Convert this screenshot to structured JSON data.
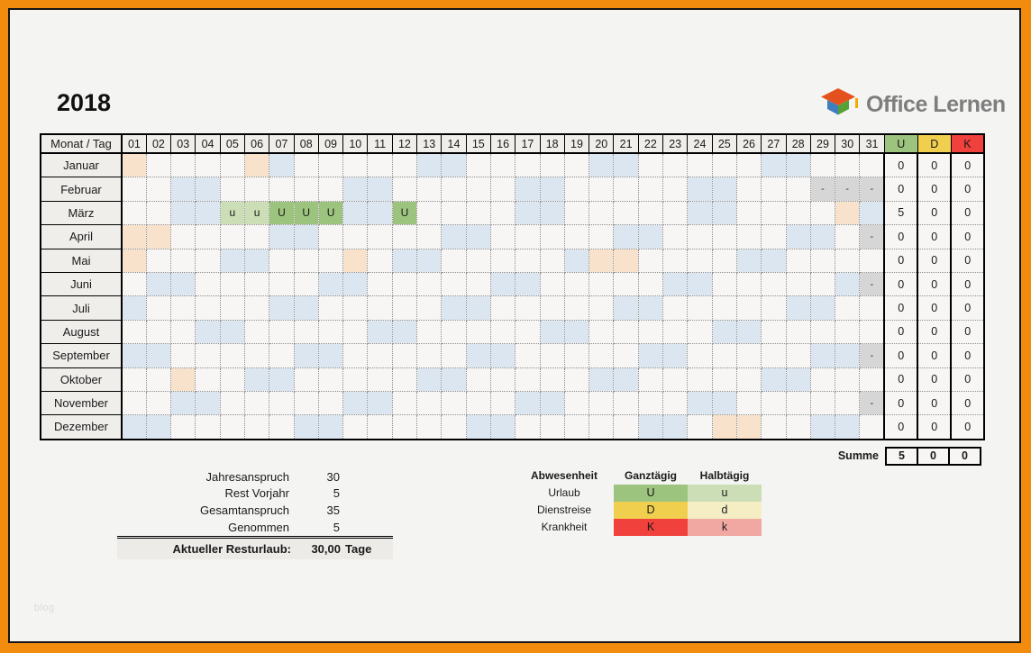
{
  "page": {
    "title": "2018",
    "watermark": "blog",
    "logo": {
      "text": "Office Lernen"
    }
  },
  "colors": {
    "frame_orange": "#F28C0E",
    "background": "#F4F4F2",
    "weekend": "#DCE6F1",
    "holiday": "#F9E2CB",
    "invalid": "#D6D6D6",
    "U": "#9DC47E",
    "u": "#CBDEB6",
    "D": "#F1CF4E",
    "d": "#F5EEC5",
    "K": "#F0413C",
    "k": "#F1A8A3",
    "logo_text": "#7E7E7E"
  },
  "calendar": {
    "corner_header": "Monat / Tag",
    "day_headers": [
      "01",
      "02",
      "03",
      "04",
      "05",
      "06",
      "07",
      "08",
      "09",
      "10",
      "11",
      "12",
      "13",
      "14",
      "15",
      "16",
      "17",
      "18",
      "19",
      "20",
      "21",
      "22",
      "23",
      "24",
      "25",
      "26",
      "27",
      "28",
      "29",
      "30",
      "31"
    ],
    "sum_headers": [
      {
        "label": "U",
        "key": "U"
      },
      {
        "label": "D",
        "key": "D"
      },
      {
        "label": "K",
        "key": "K"
      }
    ],
    "cell_marks": {
      "U": "U",
      "u": "u",
      "na": "-",
      "we": "",
      "ho": ""
    },
    "months": [
      {
        "name": "Januar",
        "cells": {
          "1": "ho",
          "6": "ho",
          "7": "we",
          "13": "we",
          "14": "we",
          "20": "we",
          "21": "we",
          "27": "we",
          "28": "we"
        },
        "sums": [
          "0",
          "0",
          "0"
        ]
      },
      {
        "name": "Februar",
        "cells": {
          "3": "we",
          "4": "we",
          "10": "we",
          "11": "we",
          "17": "we",
          "18": "we",
          "24": "we",
          "25": "we",
          "29": "na",
          "30": "na",
          "31": "na"
        },
        "sums": [
          "0",
          "0",
          "0"
        ]
      },
      {
        "name": "März",
        "cells": {
          "3": "we",
          "4": "we",
          "5": "u",
          "6": "u",
          "7": "U",
          "8": "U",
          "9": "U",
          "10": "we",
          "11": "we",
          "12": "U",
          "17": "we",
          "18": "we",
          "24": "we",
          "25": "we",
          "30": "ho",
          "31": "we"
        },
        "sums": [
          "5",
          "0",
          "0"
        ]
      },
      {
        "name": "April",
        "cells": {
          "1": "ho",
          "2": "ho",
          "7": "we",
          "8": "we",
          "14": "we",
          "15": "we",
          "21": "we",
          "22": "we",
          "28": "we",
          "29": "we",
          "31": "na"
        },
        "sums": [
          "0",
          "0",
          "0"
        ]
      },
      {
        "name": "Mai",
        "cells": {
          "1": "ho",
          "5": "we",
          "6": "we",
          "10": "ho",
          "12": "we",
          "13": "we",
          "19": "we",
          "20": "ho",
          "21": "ho",
          "26": "we",
          "27": "we"
        },
        "sums": [
          "0",
          "0",
          "0"
        ]
      },
      {
        "name": "Juni",
        "cells": {
          "2": "we",
          "3": "we",
          "9": "we",
          "10": "we",
          "16": "we",
          "17": "we",
          "23": "we",
          "24": "we",
          "30": "we",
          "31": "na"
        },
        "sums": [
          "0",
          "0",
          "0"
        ]
      },
      {
        "name": "Juli",
        "cells": {
          "1": "we",
          "7": "we",
          "8": "we",
          "14": "we",
          "15": "we",
          "21": "we",
          "22": "we",
          "28": "we",
          "29": "we"
        },
        "sums": [
          "0",
          "0",
          "0"
        ]
      },
      {
        "name": "August",
        "cells": {
          "4": "we",
          "5": "we",
          "11": "we",
          "12": "we",
          "18": "we",
          "19": "we",
          "25": "we",
          "26": "we"
        },
        "sums": [
          "0",
          "0",
          "0"
        ]
      },
      {
        "name": "September",
        "cells": {
          "1": "we",
          "2": "we",
          "8": "we",
          "9": "we",
          "15": "we",
          "16": "we",
          "22": "we",
          "23": "we",
          "29": "we",
          "30": "we",
          "31": "na"
        },
        "sums": [
          "0",
          "0",
          "0"
        ]
      },
      {
        "name": "Oktober",
        "cells": {
          "3": "ho",
          "6": "we",
          "7": "we",
          "13": "we",
          "14": "we",
          "20": "we",
          "21": "we",
          "27": "we",
          "28": "we"
        },
        "sums": [
          "0",
          "0",
          "0"
        ]
      },
      {
        "name": "November",
        "cells": {
          "3": "we",
          "4": "we",
          "10": "we",
          "11": "we",
          "17": "we",
          "18": "we",
          "24": "we",
          "25": "we",
          "31": "na"
        },
        "sums": [
          "0",
          "0",
          "0"
        ]
      },
      {
        "name": "Dezember",
        "cells": {
          "1": "we",
          "2": "we",
          "8": "we",
          "9": "we",
          "15": "we",
          "16": "we",
          "22": "we",
          "23": "we",
          "25": "ho",
          "26": "ho",
          "29": "we",
          "30": "we"
        },
        "sums": [
          "0",
          "0",
          "0"
        ]
      }
    ],
    "summe": {
      "label": "Summe",
      "values": [
        "5",
        "0",
        "0"
      ]
    }
  },
  "summary": {
    "rows": [
      {
        "label": "Jahresanspruch",
        "value": "30"
      },
      {
        "label": "Rest Vorjahr",
        "value": "5"
      },
      {
        "label": "Gesamtanspruch",
        "value": "35"
      },
      {
        "label": "Genommen",
        "value": "5"
      }
    ],
    "total": {
      "label": "Aktueller Resturlaub:",
      "value": "30,00",
      "unit": "Tage"
    }
  },
  "legend": {
    "headers": [
      "Abwesenheit",
      "Ganztägig",
      "Halbtägig"
    ],
    "rows": [
      {
        "label": "Urlaub",
        "full_mark": "U",
        "half_mark": "u",
        "full_key": "U",
        "half_key": "u"
      },
      {
        "label": "Dienstreise",
        "full_mark": "D",
        "half_mark": "d",
        "full_key": "D",
        "half_key": "d"
      },
      {
        "label": "Krankheit",
        "full_mark": "K",
        "half_mark": "k",
        "full_key": "K",
        "half_key": "k"
      }
    ]
  }
}
